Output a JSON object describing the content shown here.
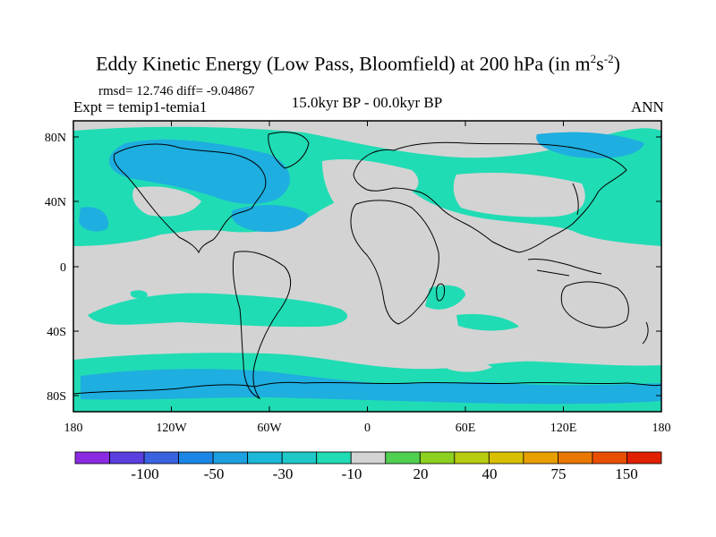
{
  "title": {
    "main": "Eddy Kinetic Energy (Low Pass, Bloomfield) at 200 hPa (in m",
    "sup1": "2",
    "mid": "s",
    "sup2": "-2",
    "end": ")"
  },
  "stats": "rmsd= 12.746 diff= -9.04867",
  "expt": "Expt = temip1-temia1",
  "center_label": "15.0kyr BP - 00.0kyr BP",
  "season": "ANN",
  "colors": {
    "land_neutral": "#d3d3d3",
    "light_teal": "#20dcb4",
    "mid_teal": "#20c8c8",
    "blue_teal": "#1eaee0",
    "coast": "#000000"
  },
  "map": {
    "lat_ticks": [
      "80N",
      "40N",
      "0",
      "40S",
      "80S"
    ],
    "lon_ticks": [
      "180",
      "120W",
      "60W",
      "0",
      "60E",
      "120E",
      "180"
    ]
  },
  "colorbar": {
    "colors": [
      "#8a2be2",
      "#5a3ee0",
      "#3a62e0",
      "#1c86e6",
      "#1ca0e0",
      "#1cb8d8",
      "#20c8c8",
      "#20dcb4",
      "#d3d3d3",
      "#50d050",
      "#8cd020",
      "#b8cc10",
      "#d8c000",
      "#e8a000",
      "#e87800",
      "#e85000",
      "#e02000"
    ],
    "labels": [
      "-100",
      "-50",
      "-30",
      "-10",
      "20",
      "40",
      "75",
      "150"
    ]
  }
}
